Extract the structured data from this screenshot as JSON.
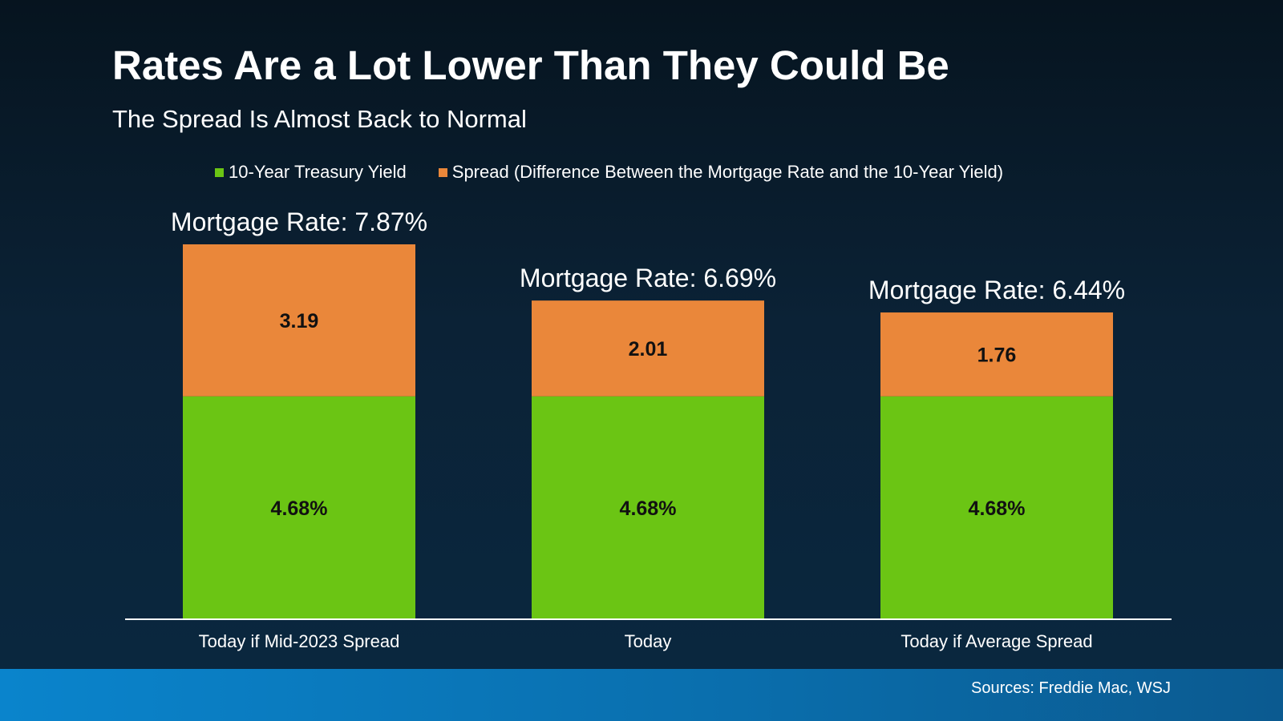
{
  "title": "Rates Are a Lot Lower Than They Could Be",
  "subtitle": "The Spread Is Almost Back to Normal",
  "legend": [
    {
      "label": "10-Year Treasury Yield",
      "color": "#6bc514"
    },
    {
      "label": "Spread (Difference Between the Mortgage Rate and the 10-Year Yield)",
      "color": "#ea873a"
    }
  ],
  "source": "Sources: Freddie Mac, WSJ",
  "chart_data": {
    "type": "bar",
    "stacked": true,
    "categories": [
      "Today if Mid-2023 Spread",
      "Today",
      "Today if Average Spread"
    ],
    "series": [
      {
        "name": "10-Year Treasury Yield",
        "values": [
          4.68,
          4.68,
          4.68
        ],
        "labels": [
          "4.68%",
          "4.68%",
          "4.68%"
        ],
        "color": "#6bc514"
      },
      {
        "name": "Spread (Difference Between the Mortgage Rate and the 10-Year Yield)",
        "values": [
          3.19,
          2.01,
          1.76
        ],
        "labels": [
          "3.19",
          "2.01",
          "1.76"
        ],
        "color": "#ea873a"
      }
    ],
    "totals": [
      "Mortgage Rate: 7.87%",
      "Mortgage Rate: 6.69%",
      "Mortgage Rate: 6.44%"
    ],
    "ylim": [
      0,
      7.87
    ],
    "grid": false,
    "legend_position": "top"
  }
}
